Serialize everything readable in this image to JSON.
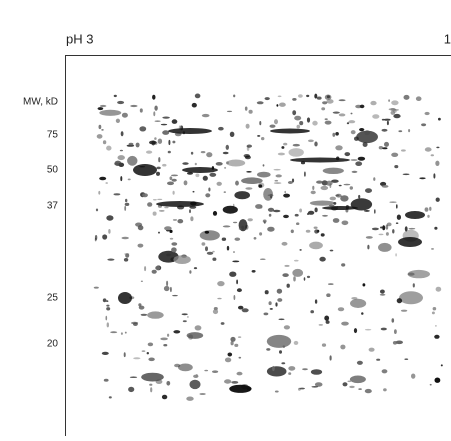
{
  "header": {
    "left_label": "pH 3",
    "right_label": "1"
  },
  "axis": {
    "title": "MW, kD",
    "ticks": [
      "75",
      "50",
      "37",
      "25",
      "20"
    ]
  }
}
